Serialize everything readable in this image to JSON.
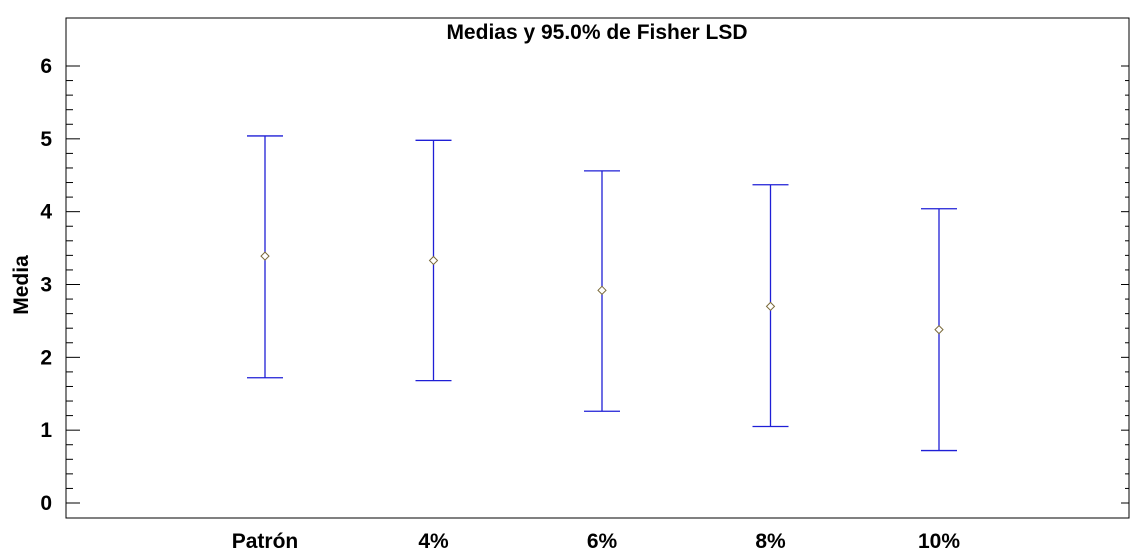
{
  "chart_data": {
    "type": "errorbar",
    "title": "Medias y 95.0% de Fisher LSD",
    "xlabel": "",
    "ylabel": "Media",
    "ylim": [
      -0.2,
      6.3
    ],
    "yticks": [
      0,
      1,
      2,
      3,
      4,
      5,
      6
    ],
    "categories": [
      "Patrón",
      "4%",
      "6%",
      "8%",
      "10%"
    ],
    "series": [
      {
        "means": [
          3.39,
          3.33,
          2.92,
          2.7,
          2.38
        ],
        "lower": [
          1.72,
          1.68,
          1.26,
          1.05,
          0.72
        ],
        "upper": [
          5.04,
          4.98,
          4.56,
          4.37,
          4.04
        ]
      }
    ],
    "colors": {
      "interval": "#1f1fd6",
      "mean_marker": "#7a6a3a"
    },
    "grid": false
  }
}
